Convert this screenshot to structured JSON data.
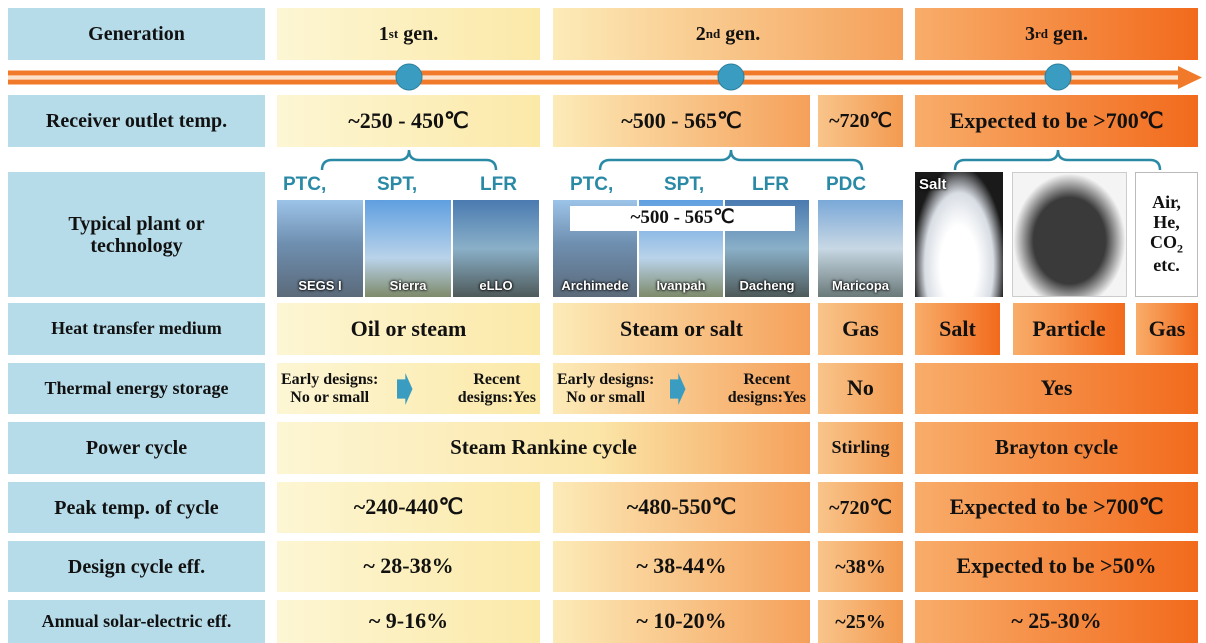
{
  "row_labels": [
    "Generation",
    "Receiver outlet temp.",
    "Typical plant or technology",
    "Heat transfer medium",
    "Thermal energy storage",
    "Power cycle",
    "Peak temp. of cycle",
    "Design cycle eff.",
    "Annual solar-electric eff."
  ],
  "generations": [
    {
      "num": "1",
      "suffix": "st",
      "label": "gen."
    },
    {
      "num": "2",
      "suffix": "nd",
      "label": "gen."
    },
    {
      "num": "3",
      "suffix": "rd",
      "label": "gen."
    }
  ],
  "receiver_temp": [
    "~250 - 450℃",
    "~500 - 565℃",
    "~720℃",
    "Expected to be >700℃"
  ],
  "plants": {
    "gen1": {
      "techs": [
        "PTC,",
        "SPT,",
        "LFR"
      ],
      "photos": [
        "SEGS I",
        "Sierra",
        "eLLO"
      ]
    },
    "gen2": {
      "techs": [
        "PTC,",
        "SPT,",
        "LFR"
      ],
      "overlay": "~500 - 565℃",
      "photos": [
        "Archimede",
        "Ivanpah",
        "Dacheng"
      ]
    },
    "pdc": {
      "tech": "PDC",
      "photo": "Maricopa"
    },
    "gen3": {
      "salt": "Salt",
      "gas_lines": [
        "Air,",
        "He,",
        "CO",
        "etc."
      ],
      "subscript": "2"
    }
  },
  "heat_transfer": [
    "Oil or steam",
    "Steam or salt",
    "Gas",
    "Salt",
    "Particle",
    "Gas"
  ],
  "storage": {
    "gen1": [
      "Early designs:",
      "No or small",
      "Recent",
      "designs:Yes"
    ],
    "gen2": [
      "Early designs:",
      "No or small",
      "Recent",
      "designs:Yes"
    ],
    "pdc": "No",
    "gen3": "Yes"
  },
  "power_cycle": [
    "Steam Rankine cycle",
    "Stirling",
    "Brayton cycle"
  ],
  "peak_temp": [
    "~240-440℃",
    "~480-550℃",
    "~720℃",
    "Expected to be >700℃"
  ],
  "design_eff": [
    "~ 28-38%",
    "~ 38-44%",
    "~38%",
    "Expected to be >50%"
  ],
  "annual_eff": [
    "~ 9-16%",
    "~ 10-20%",
    "~25%",
    "~ 25-30%"
  ]
}
